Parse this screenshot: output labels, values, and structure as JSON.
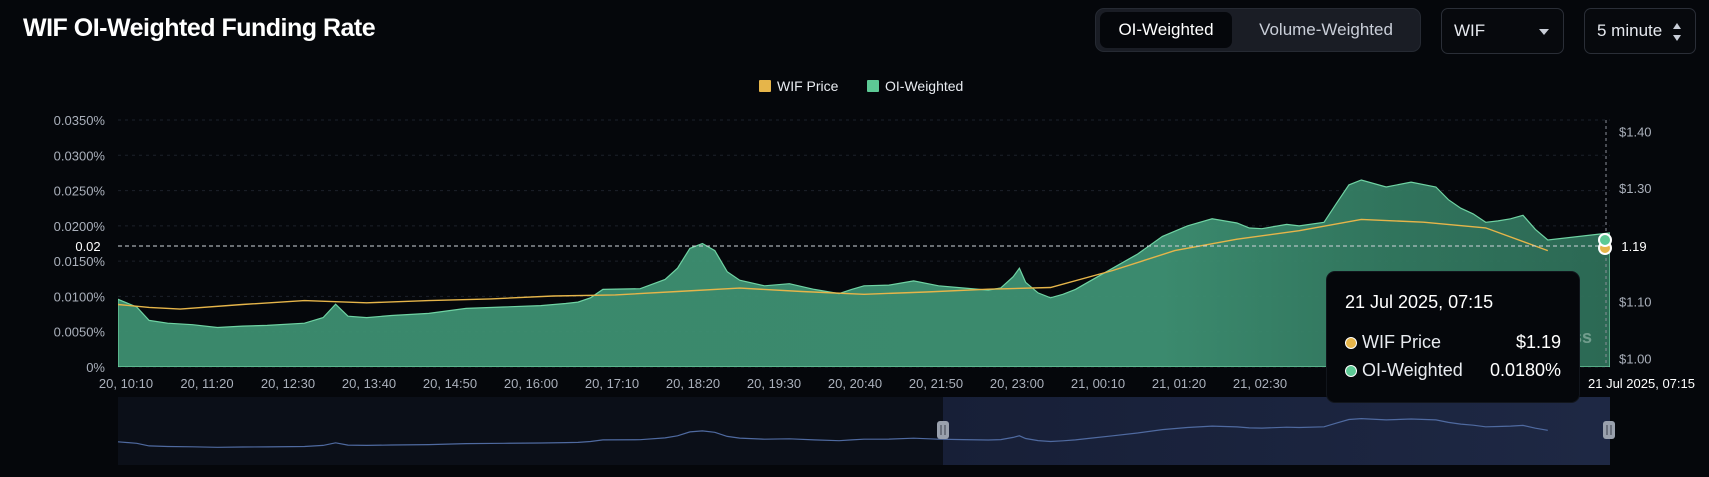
{
  "header": {
    "title": "WIF OI-Weighted Funding Rate",
    "tabs": [
      {
        "label": "OI-Weighted",
        "active": true
      },
      {
        "label": "Volume-Weighted",
        "active": false
      }
    ],
    "symbol_select": "WIF",
    "interval_select": "5 minute"
  },
  "legend": [
    {
      "label": "WIF Price",
      "color": "#e6b54a"
    },
    {
      "label": "OI-Weighted",
      "color": "#5dc995"
    }
  ],
  "crosshair": {
    "y_left_label": "0.02",
    "y_right_label": "1.19",
    "x_label": "21 Jul 2025, 07:15"
  },
  "watermark": "ss",
  "tooltip": {
    "date": "21 Jul 2025, 07:15",
    "rows": [
      {
        "label": "WIF Price",
        "value": "$1.19",
        "color": "#e6b54a"
      },
      {
        "label": "OI-Weighted",
        "value": "0.0180%",
        "color": "#5dc995"
      }
    ]
  },
  "chart_data": {
    "type": "area",
    "x_tick_labels": [
      "20, 10:10",
      "20, 11:20",
      "20, 12:30",
      "20, 13:40",
      "20, 14:50",
      "20, 16:00",
      "20, 17:10",
      "20, 18:20",
      "20, 19:30",
      "20, 20:40",
      "20, 21:50",
      "20, 23:00",
      "21, 00:10",
      "21, 01:20",
      "21, 02:30"
    ],
    "y_left_ticks": [
      "0%",
      "0.0050%",
      "0.0100%",
      "0.0150%",
      "0.0200%",
      "0.0250%",
      "0.0300%",
      "0.0350%"
    ],
    "y_left_range": [
      0,
      0.035
    ],
    "y_right_ticks": [
      "$1.00",
      "$1.10",
      "$1.19",
      "$1.30",
      "$1.40"
    ],
    "y_right_values": [
      1.0,
      1.1,
      1.19,
      1.3,
      1.4
    ],
    "y_right_range": [
      0.985,
      1.42
    ],
    "x_range": [
      0,
      240
    ],
    "series": [
      {
        "name": "OI-Weighted",
        "axis": "left",
        "points": [
          [
            0,
            0.0096
          ],
          [
            3,
            0.0085
          ],
          [
            5,
            0.0066
          ],
          [
            8,
            0.0062
          ],
          [
            12,
            0.006
          ],
          [
            16,
            0.0056
          ],
          [
            20,
            0.0058
          ],
          [
            24,
            0.0059
          ],
          [
            30,
            0.0062
          ],
          [
            33,
            0.007
          ],
          [
            35,
            0.0089
          ],
          [
            37,
            0.0072
          ],
          [
            40,
            0.007
          ],
          [
            44,
            0.0073
          ],
          [
            50,
            0.0076
          ],
          [
            56,
            0.0083
          ],
          [
            62,
            0.0085
          ],
          [
            68,
            0.0087
          ],
          [
            72,
            0.009
          ],
          [
            74,
            0.0092
          ],
          [
            76,
            0.0098
          ],
          [
            78,
            0.011
          ],
          [
            84,
            0.0111
          ],
          [
            88,
            0.0124
          ],
          [
            90,
            0.014
          ],
          [
            92,
            0.0168
          ],
          [
            94,
            0.0175
          ],
          [
            96,
            0.0165
          ],
          [
            98,
            0.0135
          ],
          [
            100,
            0.0123
          ],
          [
            104,
            0.0115
          ],
          [
            108,
            0.0118
          ],
          [
            112,
            0.011
          ],
          [
            116,
            0.0104
          ],
          [
            118,
            0.011
          ],
          [
            120,
            0.0115
          ],
          [
            124,
            0.0116
          ],
          [
            128,
            0.0122
          ],
          [
            132,
            0.0115
          ],
          [
            136,
            0.0112
          ],
          [
            140,
            0.0109
          ],
          [
            142,
            0.0112
          ],
          [
            144,
            0.0128
          ],
          [
            145,
            0.014
          ],
          [
            146,
            0.012
          ],
          [
            148,
            0.0105
          ],
          [
            150,
            0.0098
          ],
          [
            152,
            0.0103
          ],
          [
            154,
            0.011
          ],
          [
            156,
            0.012
          ],
          [
            160,
            0.014
          ],
          [
            164,
            0.016
          ],
          [
            168,
            0.0185
          ],
          [
            172,
            0.02
          ],
          [
            176,
            0.021
          ],
          [
            180,
            0.0204
          ],
          [
            182,
            0.0197
          ],
          [
            184,
            0.0196
          ],
          [
            188,
            0.0202
          ],
          [
            190,
            0.02
          ],
          [
            194,
            0.0205
          ],
          [
            196,
            0.0232
          ],
          [
            198,
            0.0258
          ],
          [
            200,
            0.0265
          ],
          [
            204,
            0.0255
          ],
          [
            208,
            0.0262
          ],
          [
            212,
            0.0255
          ],
          [
            214,
            0.0237
          ],
          [
            216,
            0.0225
          ],
          [
            218,
            0.0217
          ],
          [
            220,
            0.0205
          ],
          [
            222,
            0.0207
          ],
          [
            224,
            0.021
          ],
          [
            226,
            0.0215
          ],
          [
            228,
            0.0195
          ],
          [
            230,
            0.018
          ]
        ],
        "note": "approximate; curve continues through visible region"
      },
      {
        "name": "WIF Price",
        "axis": "right",
        "points": [
          [
            0,
            1.095
          ],
          [
            5,
            1.09
          ],
          [
            10,
            1.087
          ],
          [
            20,
            1.095
          ],
          [
            30,
            1.102
          ],
          [
            40,
            1.098
          ],
          [
            50,
            1.102
          ],
          [
            60,
            1.105
          ],
          [
            70,
            1.11
          ],
          [
            80,
            1.112
          ],
          [
            90,
            1.118
          ],
          [
            100,
            1.124
          ],
          [
            110,
            1.118
          ],
          [
            120,
            1.113
          ],
          [
            130,
            1.117
          ],
          [
            140,
            1.122
          ],
          [
            150,
            1.125
          ],
          [
            160,
            1.155
          ],
          [
            170,
            1.19
          ],
          [
            180,
            1.21
          ],
          [
            190,
            1.225
          ],
          [
            200,
            1.245
          ],
          [
            210,
            1.24
          ],
          [
            220,
            1.23
          ],
          [
            230,
            1.19
          ]
        ]
      }
    ]
  }
}
